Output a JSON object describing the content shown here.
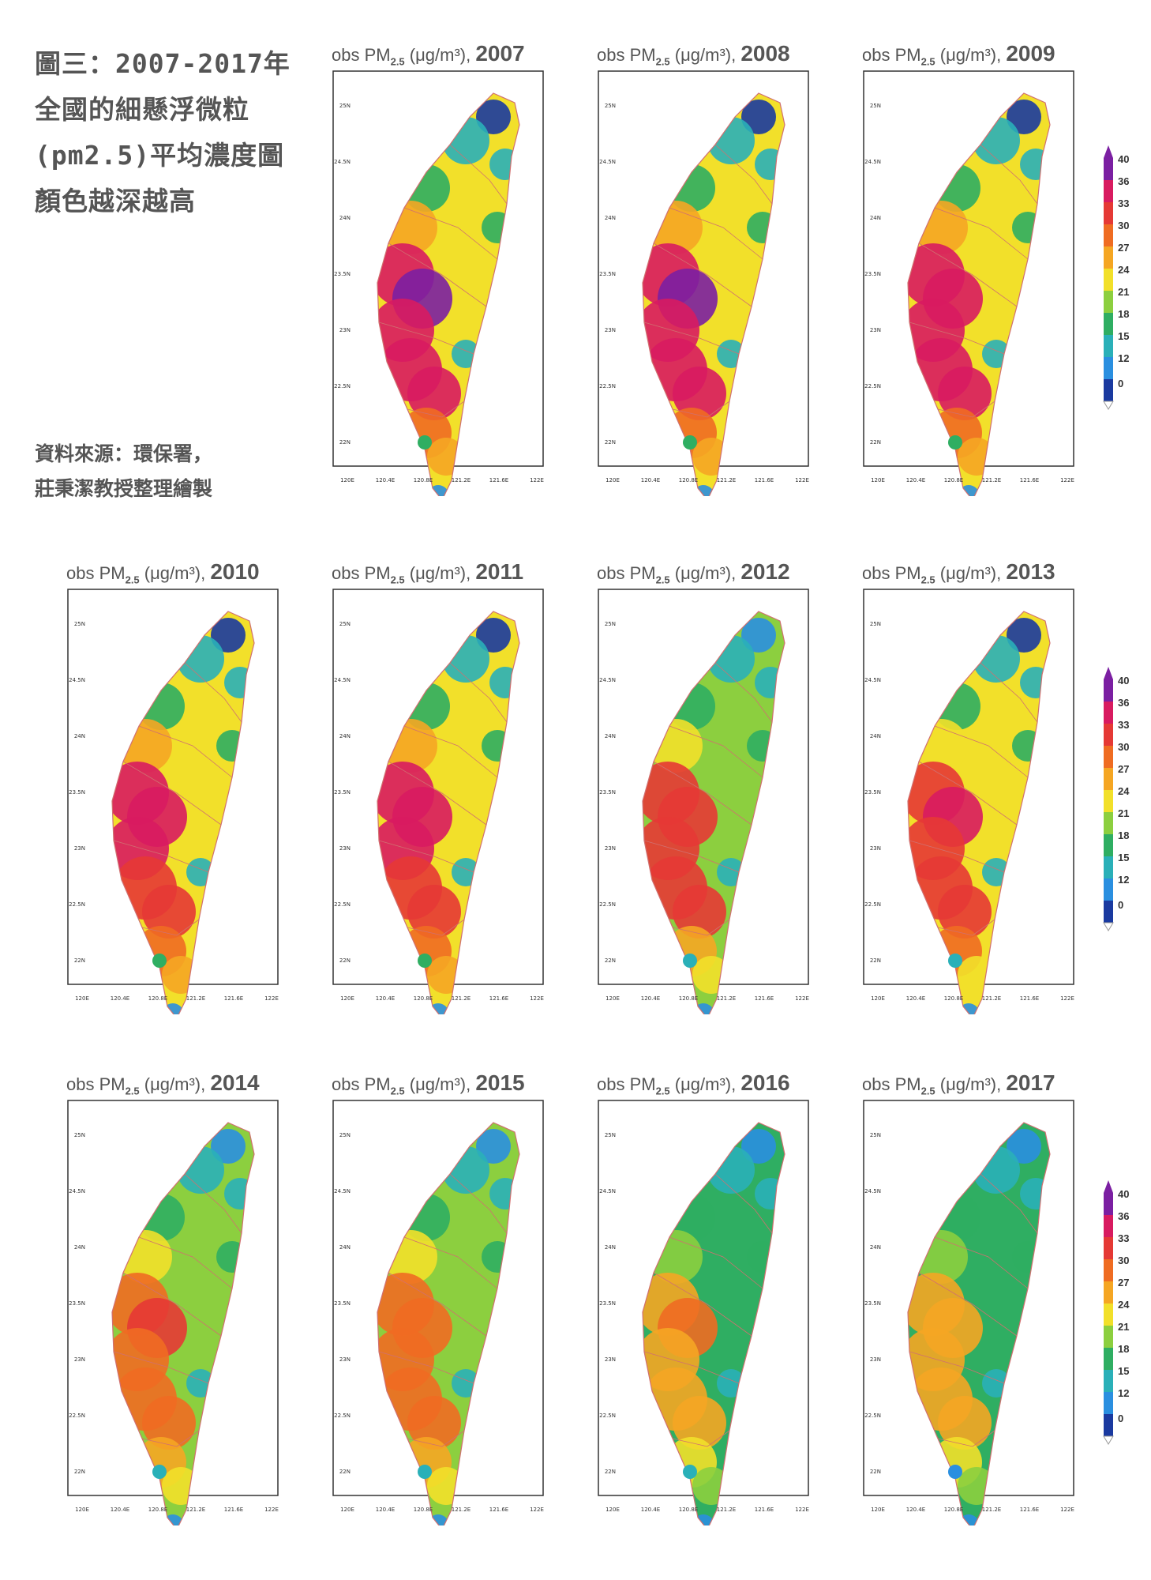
{
  "caption": {
    "lines": [
      "圖三：2007-2017年",
      "全國的細懸浮微粒",
      "(pm2.5)平均濃度圖",
      "顏色越深越高"
    ]
  },
  "source": {
    "lines": [
      "資料來源：環保署，",
      "莊秉潔教授整理繪製"
    ]
  },
  "panel_title_prefix": "obs PM",
  "panel_title_sub": "2.5",
  "panel_title_unit": "(μg/m³),",
  "panels": [
    {
      "year": "2007",
      "level": 0.95
    },
    {
      "year": "2008",
      "level": 0.95
    },
    {
      "year": "2009",
      "level": 0.93
    },
    {
      "year": "2010",
      "level": 0.88
    },
    {
      "year": "2011",
      "level": 0.88
    },
    {
      "year": "2012",
      "level": 0.78
    },
    {
      "year": "2013",
      "level": 0.82
    },
    {
      "year": "2014",
      "level": 0.7
    },
    {
      "year": "2015",
      "level": 0.65
    },
    {
      "year": "2016",
      "level": 0.55
    },
    {
      "year": "2017",
      "level": 0.5
    }
  ],
  "y_ticks": [
    "25N",
    "24.5N",
    "24N",
    "23.5N",
    "23N",
    "22.5N",
    "22N"
  ],
  "x_ticks": [
    "120E",
    "120.4E",
    "120.8E",
    "121.2E",
    "121.6E",
    "122E"
  ],
  "colorbar": {
    "labels": [
      "40",
      "36",
      "33",
      "30",
      "27",
      "24",
      "21",
      "18",
      "15",
      "12",
      "0"
    ],
    "colors": [
      "#7b1fa2",
      "#d81b60",
      "#e53935",
      "#ef6c22",
      "#f5a623",
      "#f2e02a",
      "#8ccf3f",
      "#2fae62",
      "#2ab0b8",
      "#2a8fe0",
      "#1a3aa0"
    ]
  }
}
